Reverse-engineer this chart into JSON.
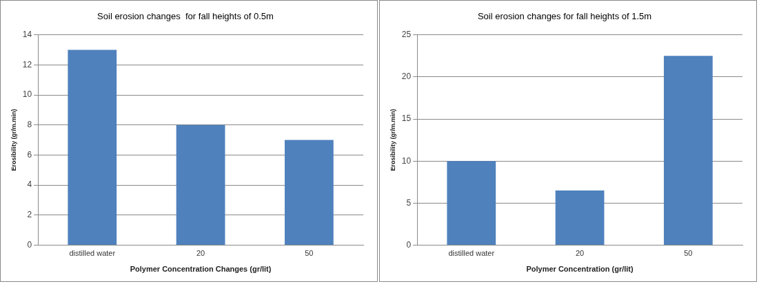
{
  "chart_data": [
    {
      "type": "bar",
      "title": "Soil erosion changes  for fall heights of 0.5m",
      "xlabel": "Polymer Concentration Changes (gr/lit)",
      "ylabel": "Erosibility (gr/m.min)",
      "categories": [
        "distilled water",
        "20",
        "50"
      ],
      "values": [
        13,
        8,
        7
      ],
      "color": "#4f81bd",
      "ylim": [
        0,
        14
      ],
      "yticks": [
        0,
        2,
        4,
        6,
        8,
        10,
        12,
        14
      ],
      "grid": "y",
      "legend": false
    },
    {
      "type": "bar",
      "title": "Soil erosion changes for fall heights of 1.5m",
      "xlabel": "Polymer Concentration (gr/lit)",
      "ylabel": "Erosibility (gr/m.min)",
      "categories": [
        "distilled water",
        "20",
        "50"
      ],
      "values": [
        10,
        6.5,
        22.5
      ],
      "color": "#4f81bd",
      "ylim": [
        0,
        25
      ],
      "yticks": [
        0,
        5,
        10,
        15,
        20,
        25
      ],
      "grid": "y",
      "legend": false
    }
  ]
}
